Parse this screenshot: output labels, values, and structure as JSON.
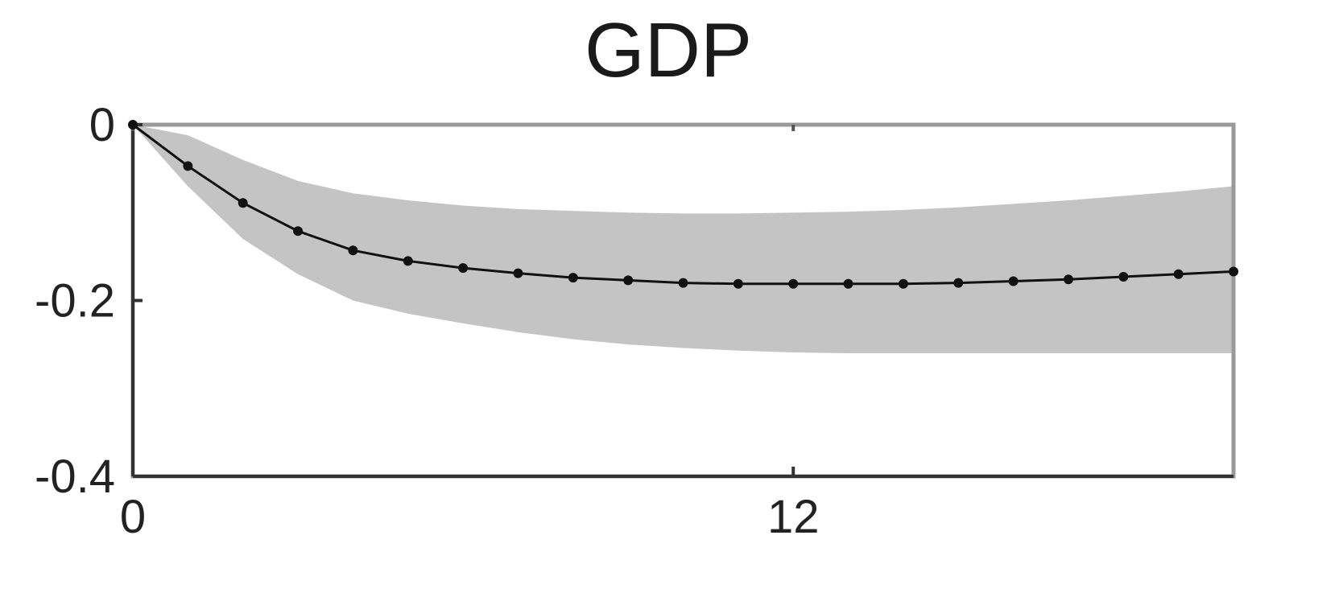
{
  "chart_data": {
    "type": "line",
    "title": "GDP",
    "xlabel": "",
    "ylabel": "",
    "xlim": [
      0,
      20
    ],
    "ylim": [
      -0.4,
      0
    ],
    "x_ticks": [
      0,
      12
    ],
    "x_tick_labels": [
      "0",
      "12"
    ],
    "y_ticks": [
      0,
      -0.2,
      -0.4
    ],
    "y_tick_labels": [
      "0",
      "-0.2",
      "-0.4"
    ],
    "grid": false,
    "legend": "none",
    "series": [
      {
        "type": "line-with-markers",
        "x": [
          0,
          1,
          2,
          3,
          4,
          5,
          6,
          7,
          8,
          9,
          10,
          11,
          12,
          13,
          14,
          15,
          16,
          17,
          18,
          19,
          20
        ],
        "values": [
          0,
          -0.047,
          -0.089,
          -0.121,
          -0.143,
          -0.155,
          -0.163,
          -0.169,
          -0.174,
          -0.177,
          -0.18,
          -0.181,
          -0.181,
          -0.181,
          -0.181,
          -0.18,
          -0.178,
          -0.176,
          -0.173,
          -0.17,
          -0.167
        ],
        "color": "#111111"
      }
    ],
    "band": {
      "type": "confidence-band",
      "x": [
        0,
        1,
        2,
        3,
        4,
        5,
        6,
        7,
        8,
        9,
        10,
        11,
        12,
        13,
        14,
        15,
        16,
        17,
        18,
        19,
        20
      ],
      "lower": [
        0,
        -0.07,
        -0.13,
        -0.17,
        -0.2,
        -0.215,
        -0.226,
        -0.236,
        -0.244,
        -0.25,
        -0.254,
        -0.257,
        -0.259,
        -0.26,
        -0.26,
        -0.26,
        -0.26,
        -0.26,
        -0.26,
        -0.26,
        -0.26
      ],
      "upper": [
        0,
        -0.012,
        -0.04,
        -0.064,
        -0.078,
        -0.086,
        -0.092,
        -0.096,
        -0.098,
        -0.1,
        -0.101,
        -0.101,
        -0.1,
        -0.099,
        -0.097,
        -0.094,
        -0.09,
        -0.086,
        -0.081,
        -0.076,
        -0.07
      ],
      "color": "#c4c4c4"
    }
  }
}
